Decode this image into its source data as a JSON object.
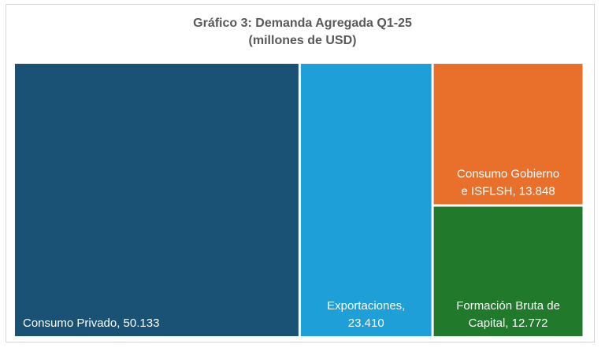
{
  "chart_data": {
    "type": "treemap",
    "title": "Gráfico 3: Demanda Agregada Q1-25",
    "subtitle": "(millones de USD)",
    "items": [
      {
        "label": "Consumo Privado",
        "value": 50133,
        "value_text": "50.133",
        "color": "#1a5276",
        "label_lines": [
          "Consumo Privado,  50.133"
        ],
        "align": "start"
      },
      {
        "label": "Exportaciones",
        "value": 23410,
        "value_text": "23.410",
        "color": "#1f9fd8",
        "label_lines": [
          "Exportaciones,",
          "23.410"
        ],
        "align": "middle"
      },
      {
        "label": "Consumo Gobierno e ISFLSH",
        "value": 13848,
        "value_text": "13.848",
        "color": "#e8702a",
        "label_lines": [
          "Consumo Gobierno",
          "e ISFLSH,  13.848"
        ],
        "align": "middle"
      },
      {
        "label": "Formación Bruta de Capital",
        "value": 12772,
        "value_text": "12.772",
        "color": "#217a2c",
        "label_lines": [
          "Formación Bruta de",
          "Capital,  12.772"
        ],
        "align": "middle"
      }
    ]
  }
}
